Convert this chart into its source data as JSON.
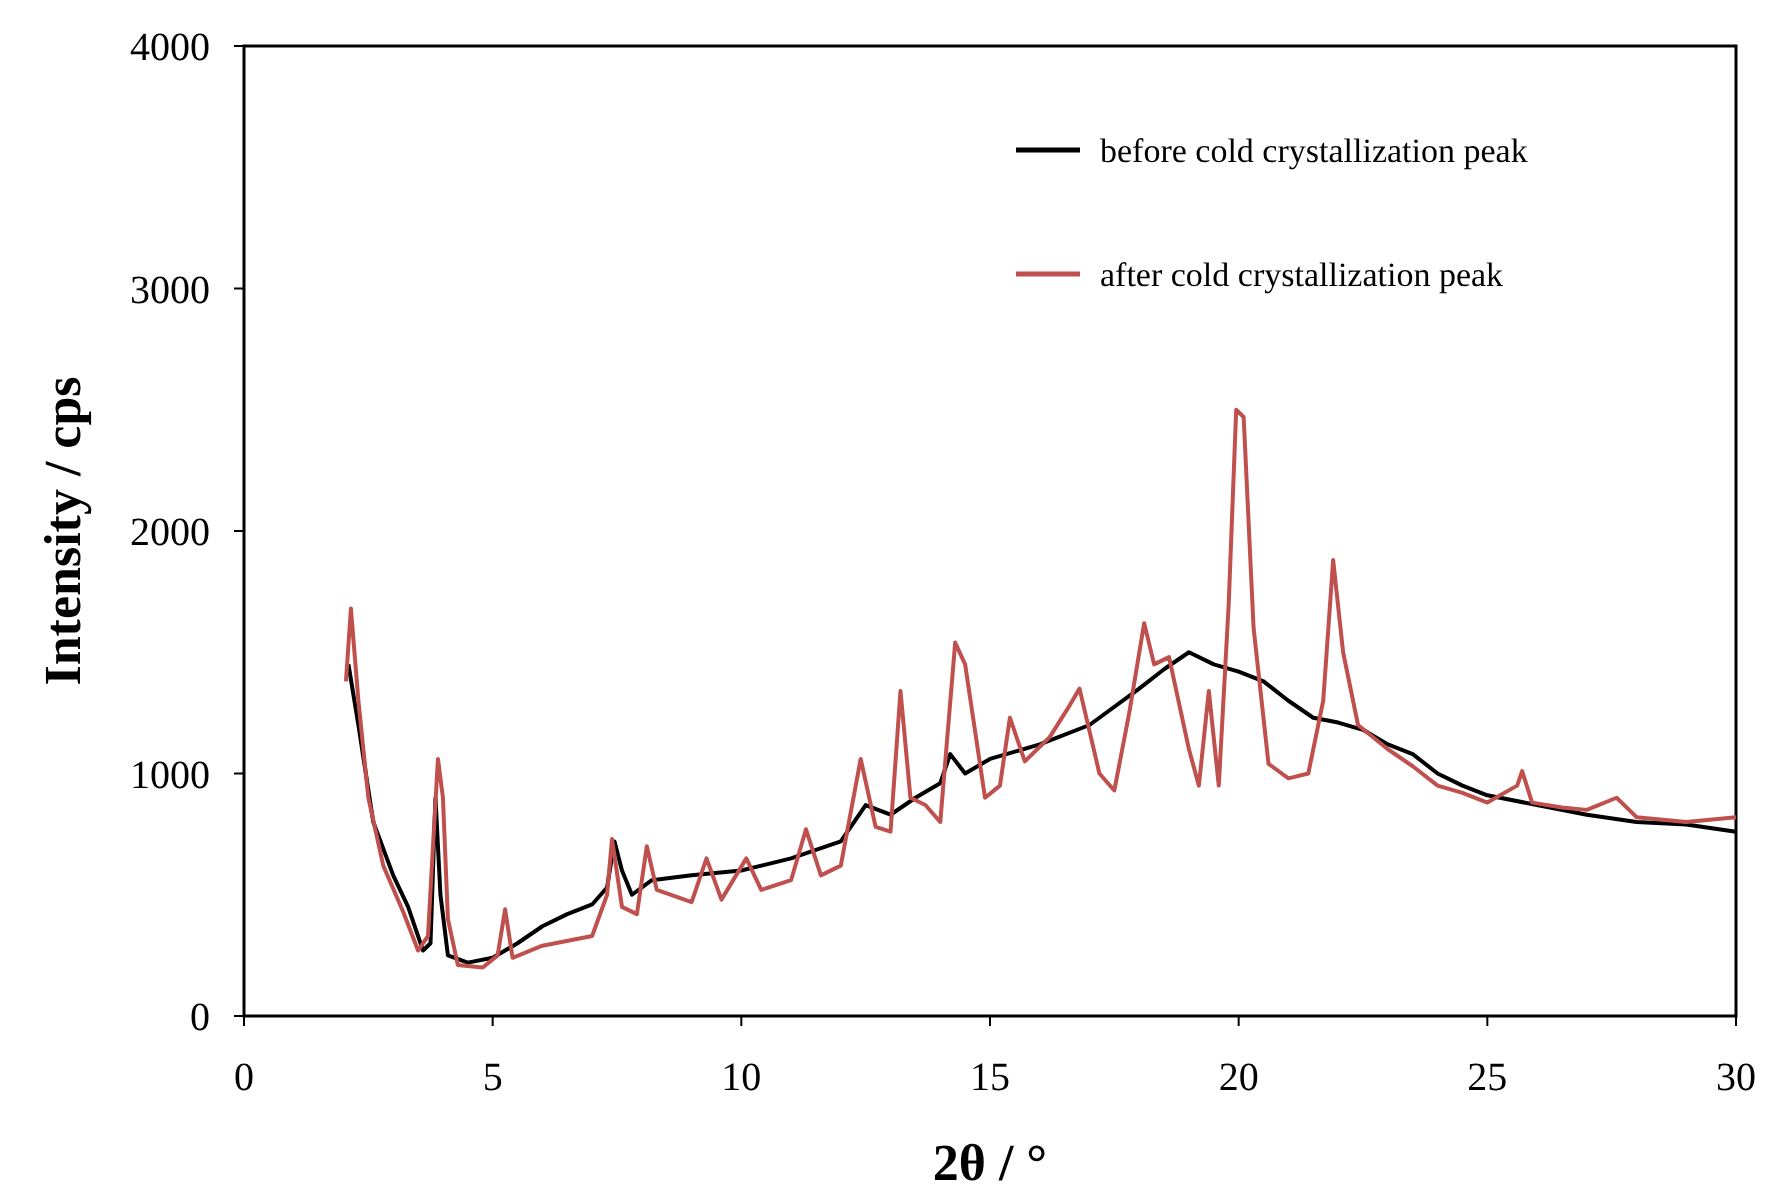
{
  "chart_data": {
    "type": "line",
    "xlabel": "2θ / °",
    "ylabel": "Intensity / cps",
    "xlim": [
      0,
      30
    ],
    "xticks": [
      0,
      5,
      10,
      15,
      20,
      25,
      30
    ],
    "ylim": [
      0,
      4000
    ],
    "yticks": [
      0,
      1000,
      2000,
      3000,
      4000
    ],
    "grid": false,
    "legend": "top right",
    "marker": "none",
    "line_style": "solid",
    "series": [
      {
        "name": "before cold crystallization peak",
        "color": "#000000",
        "x": [
          2.1,
          2.3,
          2.6,
          3.0,
          3.3,
          3.6,
          3.75,
          3.85,
          3.95,
          4.1,
          4.5,
          5.0,
          5.5,
          6.0,
          6.5,
          7.0,
          7.3,
          7.45,
          7.6,
          7.8,
          8.2,
          9,
          10,
          11,
          12,
          12.5,
          13,
          13.5,
          14,
          14.2,
          14.5,
          15,
          16,
          17,
          18,
          18.5,
          19,
          19.5,
          20,
          20.5,
          21,
          21.5,
          22,
          22.5,
          23,
          23.5,
          24,
          24.5,
          25,
          26,
          27,
          28,
          29,
          30
        ],
        "values": [
          1450,
          1200,
          800,
          580,
          450,
          270,
          300,
          900,
          500,
          250,
          220,
          240,
          300,
          370,
          420,
          460,
          530,
          720,
          600,
          500,
          560,
          580,
          600,
          650,
          720,
          870,
          830,
          900,
          960,
          1080,
          1000,
          1060,
          1120,
          1200,
          1350,
          1430,
          1500,
          1450,
          1420,
          1380,
          1300,
          1230,
          1210,
          1180,
          1120,
          1080,
          1000,
          950,
          910,
          870,
          830,
          800,
          790,
          760
        ]
      },
      {
        "name": "after cold crystallization peak",
        "color": "#c0504d",
        "x": [
          2.05,
          2.15,
          2.3,
          2.5,
          2.8,
          3.2,
          3.5,
          3.7,
          3.8,
          3.9,
          4.0,
          4.1,
          4.3,
          4.8,
          5.1,
          5.25,
          5.4,
          6,
          7,
          7.3,
          7.4,
          7.6,
          7.9,
          8.1,
          8.3,
          9,
          9.3,
          9.6,
          10.1,
          10.4,
          11,
          11.3,
          11.6,
          12,
          12.4,
          12.7,
          13,
          13.2,
          13.4,
          13.7,
          14,
          14.3,
          14.5,
          14.9,
          15.2,
          15.4,
          15.7,
          16.2,
          16.6,
          16.8,
          17.2,
          17.5,
          17.8,
          18.1,
          18.3,
          18.6,
          19.0,
          19.2,
          19.4,
          19.6,
          19.8,
          19.95,
          20.1,
          20.3,
          20.6,
          21,
          21.4,
          21.7,
          21.9,
          22.1,
          22.4,
          23,
          23.5,
          24,
          24.5,
          25,
          25.6,
          25.7,
          25.9,
          26.5,
          27,
          27.6,
          28,
          29,
          30
        ],
        "values": [
          1380,
          1680,
          1300,
          900,
          620,
          430,
          270,
          330,
          700,
          1060,
          900,
          400,
          210,
          200,
          250,
          440,
          240,
          290,
          330,
          500,
          730,
          450,
          420,
          700,
          520,
          470,
          650,
          480,
          650,
          520,
          560,
          770,
          580,
          620,
          1060,
          780,
          760,
          1340,
          900,
          870,
          800,
          1540,
          1450,
          900,
          950,
          1230,
          1050,
          1150,
          1280,
          1350,
          1000,
          930,
          1250,
          1620,
          1450,
          1480,
          1100,
          950,
          1340,
          950,
          1700,
          2500,
          2470,
          1600,
          1040,
          980,
          1000,
          1300,
          1880,
          1500,
          1200,
          1100,
          1030,
          950,
          920,
          880,
          950,
          1010,
          880,
          860,
          850,
          900,
          820,
          800,
          820
        ]
      }
    ]
  }
}
